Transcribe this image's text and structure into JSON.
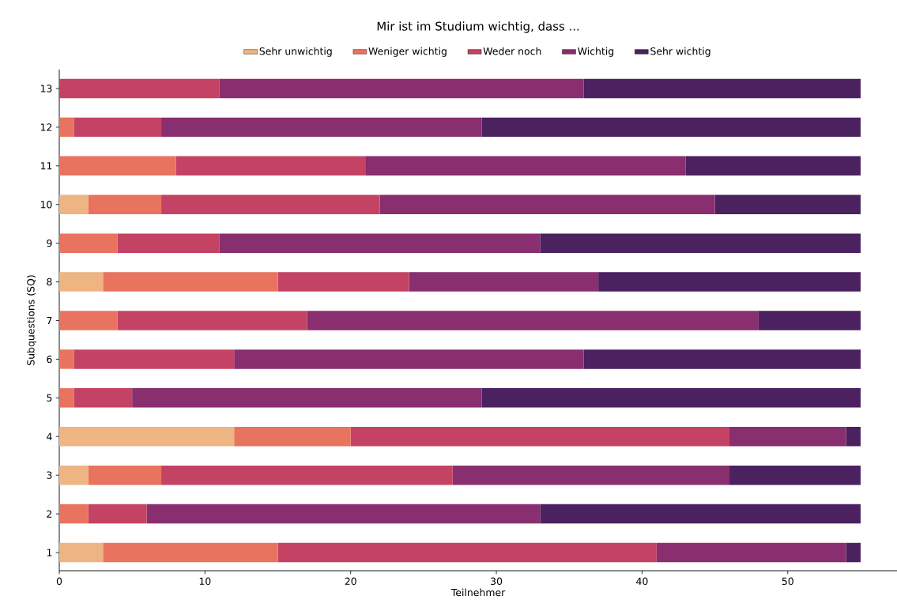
{
  "chart_data": {
    "type": "bar",
    "orientation": "horizontal",
    "stacked": true,
    "title": "Mir ist im Studium wichtig, dass ...",
    "xlabel": "Teilnehmer",
    "ylabel": "Subquestions (SQ)",
    "categories": [
      "13",
      "12",
      "11",
      "10",
      "9",
      "8",
      "7",
      "6",
      "5",
      "4",
      "3",
      "2",
      "1"
    ],
    "series": [
      {
        "name": "Sehr unwichtig",
        "color": "#eeb482",
        "values": [
          0,
          0,
          0,
          2,
          0,
          3,
          0,
          0,
          0,
          12,
          2,
          0,
          3
        ]
      },
      {
        "name": "Weniger wichtig",
        "color": "#e8735f",
        "values": [
          0,
          1,
          8,
          5,
          4,
          12,
          4,
          1,
          1,
          8,
          5,
          2,
          12
        ]
      },
      {
        "name": "Weder noch",
        "color": "#c44365",
        "values": [
          11,
          6,
          13,
          15,
          7,
          9,
          13,
          11,
          4,
          26,
          20,
          4,
          26
        ]
      },
      {
        "name": "Wichtig",
        "color": "#892e6e",
        "values": [
          25,
          22,
          22,
          23,
          22,
          13,
          31,
          24,
          24,
          8,
          19,
          27,
          13
        ]
      },
      {
        "name": "Sehr wichtig",
        "color": "#4b2160",
        "values": [
          19,
          26,
          12,
          10,
          22,
          18,
          7,
          19,
          26,
          1,
          9,
          22,
          1
        ]
      }
    ],
    "xlim": [
      0,
      57.5
    ],
    "xticks": [
      0,
      10,
      20,
      30,
      40,
      50
    ],
    "grid": false,
    "legend": "top"
  }
}
